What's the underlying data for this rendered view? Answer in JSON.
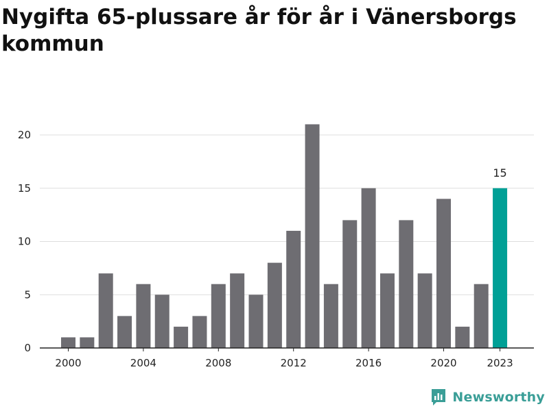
{
  "chart_data": {
    "type": "bar",
    "title": "Nygifta 65-plussare år för år i Vänersborgs kommun",
    "xlabel": "",
    "ylabel": "",
    "categories": [
      2000,
      2001,
      2002,
      2003,
      2004,
      2005,
      2006,
      2007,
      2008,
      2009,
      2010,
      2011,
      2012,
      2013,
      2014,
      2015,
      2016,
      2017,
      2018,
      2019,
      2020,
      2021,
      2022,
      2023
    ],
    "values": [
      1,
      1,
      7,
      3,
      6,
      5,
      2,
      3,
      6,
      7,
      5,
      8,
      11,
      21,
      6,
      12,
      15,
      7,
      12,
      7,
      14,
      2,
      6,
      15
    ],
    "x_tick_labels": [
      "2000",
      "2004",
      "2008",
      "2012",
      "2016",
      "2020",
      "2023"
    ],
    "y_ticks": [
      0,
      5,
      10,
      15,
      20
    ],
    "ylim": [
      0,
      22
    ],
    "grid": true,
    "highlight": {
      "category": 2023,
      "label": "15"
    },
    "colors": {
      "bar": "#6e6d72",
      "highlight": "#00a096",
      "grid": "#dddddd",
      "axis": "#222222"
    }
  },
  "brand": {
    "name": "Newsworthy",
    "color": "#3a9e97"
  }
}
